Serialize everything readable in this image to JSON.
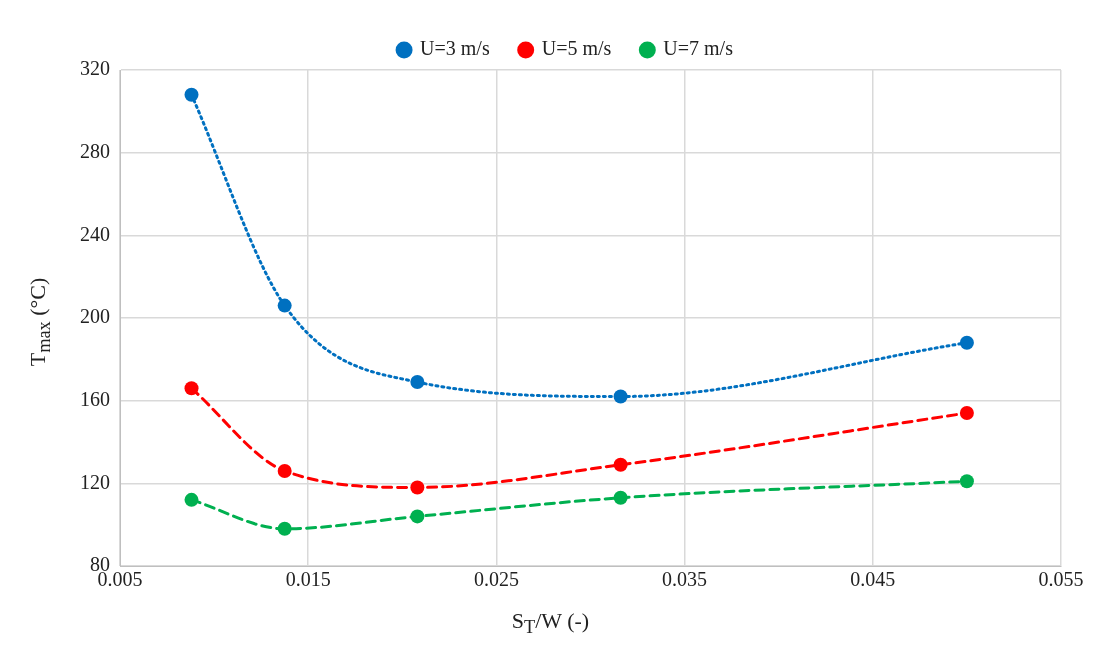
{
  "chart_data": {
    "type": "line",
    "xlabel": "S$_{T}$/W (-)",
    "ylabel": "T$_{max}$ (°C)",
    "x": [
      0.0088,
      0.01375,
      0.0208,
      0.0316,
      0.05
    ],
    "series": [
      {
        "name": "U=3 m/s",
        "color": "#0070c0",
        "line_style": "dotted",
        "values": [
          308,
          206,
          169,
          162,
          188
        ]
      },
      {
        "name": "U=5 m/s",
        "color": "#ff0000",
        "line_style": "dashed",
        "values": [
          166,
          126,
          118,
          129,
          154
        ]
      },
      {
        "name": "U=7 m/s",
        "color": "#00b050",
        "line_style": "dashed",
        "values": [
          112,
          98,
          104,
          113,
          121
        ]
      }
    ],
    "xlim": [
      0.005,
      0.055
    ],
    "xticks": [
      0.005,
      0.015,
      0.025,
      0.035,
      0.045,
      0.055
    ],
    "ylim": [
      80,
      320
    ],
    "yticks": [
      80,
      120,
      160,
      200,
      240,
      280,
      320
    ],
    "grid": true,
    "legend": "top",
    "marker": "circle"
  }
}
